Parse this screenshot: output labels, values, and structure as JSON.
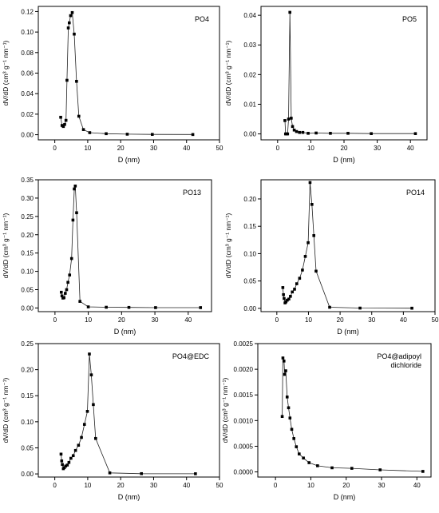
{
  "chart_data": [
    {
      "type": "line",
      "title": "PO4",
      "xlabel": "D (nm)",
      "ylabel": "dV/dD (cm³ g⁻¹ nm⁻¹)",
      "xlim": [
        -5,
        50
      ],
      "ylim": [
        -0.005,
        0.125
      ],
      "xticks": [
        "0",
        "10",
        "20",
        "30",
        "40",
        "50"
      ],
      "xtick_values": [
        0,
        10,
        20,
        30,
        40,
        50
      ],
      "yticks": [
        "0.00",
        "0.02",
        "0.04",
        "0.06",
        "0.08",
        "0.10",
        "0.12"
      ],
      "ytick_values": [
        0,
        0.02,
        0.04,
        0.06,
        0.08,
        0.1,
        0.12
      ],
      "series": [
        {
          "x": [
            1.8,
            2.2,
            2.6,
            3.0,
            3.4,
            3.7,
            4.1,
            4.4,
            4.8,
            5.3,
            5.9,
            6.6,
            7.3,
            8.7,
            10.6,
            15.6,
            22.0,
            29.6,
            41.9
          ],
          "values": [
            0.017,
            0.009,
            0.008,
            0.01,
            0.014,
            0.053,
            0.104,
            0.109,
            0.116,
            0.119,
            0.098,
            0.052,
            0.018,
            0.005,
            0.002,
            0.001,
            0.0005,
            0.0003,
            0.0002
          ]
        }
      ]
    },
    {
      "type": "line",
      "title": "PO5",
      "xlabel": "D (nm)",
      "ylabel": "dV/dD (cm³ g⁻¹ nm⁻¹)",
      "xlim": [
        -5,
        45
      ],
      "ylim": [
        -0.002,
        0.043
      ],
      "xticks": [
        "0",
        "10",
        "20",
        "30",
        "40"
      ],
      "xtick_values": [
        0,
        10,
        20,
        30,
        40
      ],
      "yticks": [
        "0.00",
        "0.01",
        "0.02",
        "0.03",
        "0.04"
      ],
      "ytick_values": [
        0,
        0.01,
        0.02,
        0.03,
        0.04
      ],
      "series": [
        {
          "x": [
            2.2,
            2.4,
            2.7,
            3.0,
            3.3,
            3.7,
            4.1,
            4.5,
            5.0,
            5.7,
            6.6,
            7.6,
            9.2,
            11.6,
            15.9,
            21.2,
            28.2,
            41.5
          ],
          "values": [
            0.0045,
            0.0,
            0.0,
            0.0,
            0.005,
            0.041,
            0.0053,
            0.0025,
            0.0013,
            0.0008,
            0.0005,
            0.0005,
            0.0002,
            0.0003,
            0.0002,
            0.0002,
            0.0001,
            0.0001
          ]
        }
      ]
    },
    {
      "type": "line",
      "title": "PO13",
      "xlabel": "D (nm)",
      "ylabel": "dV/dD (cm³ g⁻¹ nm⁻¹)",
      "xlim": [
        -5,
        47
      ],
      "ylim": [
        -0.01,
        0.35
      ],
      "xticks": [
        "0",
        "10",
        "20",
        "30",
        "40"
      ],
      "xtick_values": [
        0,
        10,
        20,
        30,
        40
      ],
      "yticks": [
        "0.00",
        "0.05",
        "0.10",
        "0.15",
        "0.20",
        "0.25",
        "0.30",
        "0.35"
      ],
      "ytick_values": [
        0,
        0.05,
        0.1,
        0.15,
        0.2,
        0.25,
        0.3,
        0.35
      ],
      "series": [
        {
          "x": [
            1.9,
            2.1,
            2.4,
            2.7,
            3.1,
            3.5,
            3.9,
            4.4,
            5.0,
            5.4,
            5.8,
            6.1,
            6.5,
            7.5,
            10.0,
            15.4,
            22.2,
            30.2,
            43.7
          ],
          "values": [
            0.043,
            0.033,
            0.027,
            0.028,
            0.04,
            0.05,
            0.07,
            0.09,
            0.135,
            0.24,
            0.325,
            0.333,
            0.26,
            0.018,
            0.003,
            0.002,
            0.0015,
            0.001,
            0.001
          ]
        }
      ]
    },
    {
      "type": "line",
      "title": "PO14",
      "xlabel": "D (nm)",
      "ylabel": "dV/dD (cm³ g⁻¹ nm⁻¹)",
      "xlim": [
        -5,
        50
      ],
      "ylim": [
        -0.006,
        0.235
      ],
      "xticks": [
        "0",
        "10",
        "20",
        "30",
        "40",
        "50"
      ],
      "xtick_values": [
        0,
        10,
        20,
        30,
        40,
        50
      ],
      "yticks": [
        "0.00",
        "0.05",
        "0.10",
        "0.15",
        "0.20"
      ],
      "ytick_values": [
        0,
        0.05,
        0.1,
        0.15,
        0.2
      ],
      "series": [
        {
          "x": [
            1.9,
            2.1,
            2.3,
            2.6,
            2.9,
            3.3,
            3.8,
            4.3,
            4.9,
            5.6,
            6.3,
            7.2,
            8.1,
            9.0,
            9.9,
            10.5,
            11.1,
            11.7,
            12.4,
            16.7,
            26.3,
            42.7
          ],
          "values": [
            0.038,
            0.025,
            0.018,
            0.01,
            0.012,
            0.015,
            0.017,
            0.022,
            0.03,
            0.035,
            0.045,
            0.055,
            0.07,
            0.095,
            0.12,
            0.23,
            0.19,
            0.133,
            0.068,
            0.002,
            0.0005,
            0.0003
          ]
        }
      ]
    },
    {
      "type": "line",
      "title": "PO4@EDC",
      "xlabel": "D (nm)",
      "ylabel": "dV/dD (cm³ g⁻¹ nm⁻¹)",
      "xlim": [
        -5,
        50
      ],
      "ylim": [
        -0.006,
        0.25
      ],
      "xticks": [
        "0",
        "10",
        "20",
        "30",
        "40",
        "50"
      ],
      "xtick_values": [
        0,
        10,
        20,
        30,
        40,
        50
      ],
      "yticks": [
        "0.00",
        "0.05",
        "0.10",
        "0.15",
        "0.20",
        "0.25"
      ],
      "ytick_values": [
        0,
        0.05,
        0.1,
        0.15,
        0.2,
        0.25
      ],
      "series": [
        {
          "x": [
            1.9,
            2.1,
            2.3,
            2.6,
            2.9,
            3.3,
            3.8,
            4.3,
            4.9,
            5.6,
            6.3,
            7.2,
            8.1,
            9.0,
            9.9,
            10.5,
            11.1,
            11.7,
            12.4,
            16.7,
            26.3,
            42.7
          ],
          "values": [
            0.038,
            0.025,
            0.018,
            0.01,
            0.012,
            0.015,
            0.017,
            0.022,
            0.03,
            0.035,
            0.045,
            0.055,
            0.07,
            0.095,
            0.12,
            0.23,
            0.19,
            0.133,
            0.068,
            0.002,
            0.0005,
            0.0003
          ]
        }
      ]
    },
    {
      "type": "line",
      "title_lines": [
        "PO4@adipoyl",
        "dichloride"
      ],
      "xlabel": "D (nm)",
      "ylabel": "dV/dD (cm³ g⁻¹ nm⁻¹)",
      "xlim": [
        -5,
        44
      ],
      "ylim": [
        -0.0001,
        0.0025
      ],
      "xticks": [
        "0",
        "10",
        "20",
        "30",
        "40"
      ],
      "xtick_values": [
        0,
        10,
        20,
        30,
        40
      ],
      "yticks": [
        "0.0000",
        "0.0005",
        "0.0010",
        "0.0015",
        "0.0020",
        "0.0025"
      ],
      "ytick_values": [
        0,
        0.0005,
        0.001,
        0.0015,
        0.002,
        0.0025
      ],
      "series": [
        {
          "x": [
            1.9,
            2.1,
            2.4,
            2.6,
            2.9,
            3.3,
            3.7,
            4.1,
            4.6,
            5.2,
            5.9,
            6.7,
            7.9,
            9.5,
            11.9,
            16.0,
            21.6,
            29.6,
            41.7
          ],
          "values": [
            0.00108,
            0.00222,
            0.00216,
            0.0019,
            0.00197,
            0.00146,
            0.00125,
            0.00105,
            0.00083,
            0.00065,
            0.00049,
            0.00035,
            0.00027,
            0.00018,
            0.00012,
            8e-05,
            7e-05,
            4e-05,
            1e-05
          ]
        }
      ]
    }
  ]
}
